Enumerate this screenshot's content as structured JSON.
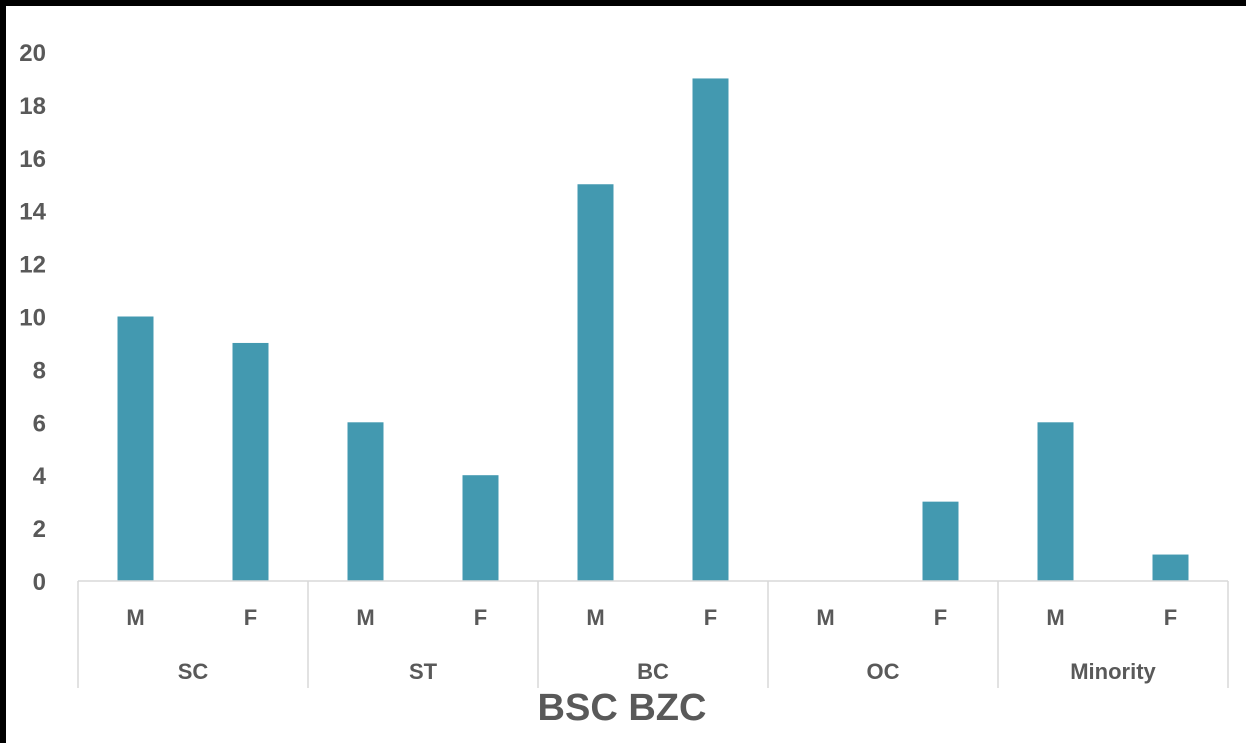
{
  "chart_data": {
    "type": "bar",
    "xlabel": "BSC BZC",
    "ylabel": "",
    "ylim": [
      0,
      20
    ],
    "yticks": [
      0,
      2,
      4,
      6,
      8,
      10,
      12,
      14,
      16,
      18,
      20
    ],
    "groups": [
      {
        "name": "SC",
        "categories": [
          "M",
          "F"
        ],
        "values": [
          10,
          9
        ]
      },
      {
        "name": "ST",
        "categories": [
          "M",
          "F"
        ],
        "values": [
          6,
          4
        ]
      },
      {
        "name": "BC",
        "categories": [
          "M",
          "F"
        ],
        "values": [
          15,
          19
        ]
      },
      {
        "name": "OC",
        "categories": [
          "M",
          "F"
        ],
        "values": [
          0,
          3
        ]
      },
      {
        "name": "Minority",
        "categories": [
          "M",
          "F"
        ],
        "values": [
          6,
          1
        ]
      }
    ],
    "bar_color": "#4399b0",
    "grid": false,
    "legend": "none"
  }
}
